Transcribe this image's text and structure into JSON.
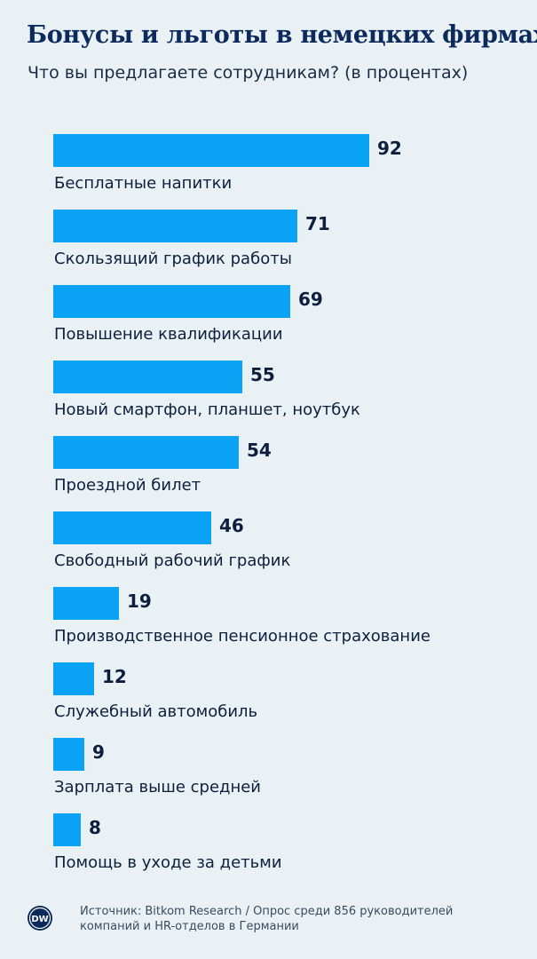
{
  "title": "Бонусы и льготы в немецких фирмах",
  "subtitle": "Что вы предлагаете сотрудникам? (в процентах)",
  "chart_data": {
    "type": "bar",
    "orientation": "horizontal",
    "title": "Бонусы и льготы в немецких фирмах",
    "subtitle": "Что вы предлагаете сотрудникам? (в процентах)",
    "categories": [
      "Бесплатные напитки",
      "Скользящий график работы",
      "Повышение квалификации",
      "Новый смартфон, планшет, ноутбук",
      "Проездной билет",
      "Свободный рабочий график",
      "Производственное пенсионное страхование",
      "Служебный автомобиль",
      "Зарплата выше средней",
      "Помощь в уходе за детьми"
    ],
    "values": [
      92,
      71,
      69,
      55,
      54,
      46,
      19,
      12,
      9,
      8
    ],
    "xlim": [
      0,
      100
    ],
    "grid": false,
    "bar_color": "#0aa3f5",
    "data_labels": true
  },
  "footer": {
    "source_line1": "Источник: Bitkom Research / Опрос среди 856 руководителей",
    "source_line2": "компаний и HR-отделов в Германии",
    "logo_text": "DW",
    "logo_icon": "dw-logo-icon"
  },
  "colors": {
    "background": "#eaf1f5",
    "title": "#0c2a5b",
    "bar": "#0aa3f5",
    "text": "#0d1f3f"
  }
}
